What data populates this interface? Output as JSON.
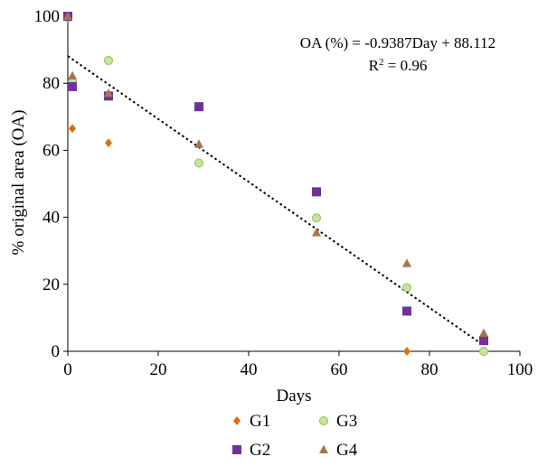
{
  "chart_data": {
    "type": "scatter",
    "xlabel": "Days",
    "ylabel": "% original area (OA)",
    "xlim": [
      0,
      100
    ],
    "ylim": [
      0,
      100
    ],
    "xticks": [
      "0",
      "20",
      "40",
      "60",
      "80",
      "100"
    ],
    "yticks": [
      "0",
      "20",
      "40",
      "60",
      "80",
      "100"
    ],
    "grid": false,
    "legend_position": "bottom",
    "annotation": {
      "equation": "OA (%) = -0.9387Day + 88.112",
      "r2_prefix": "R",
      "r2_sup": "2",
      "r2_suffix": " = 0.96"
    },
    "trendline": {
      "slope": -0.9387,
      "intercept": 88.112,
      "x_range": [
        0,
        92
      ],
      "style": "dotted",
      "color": "#000000"
    },
    "series": [
      {
        "name": "G1",
        "marker": "diamond",
        "color": "#E46C0A",
        "points": [
          [
            0,
            100
          ],
          [
            1,
            66.5
          ],
          [
            9,
            62.2
          ],
          [
            75,
            0
          ]
        ]
      },
      {
        "name": "G2",
        "marker": "square",
        "color": "#7030A0",
        "points": [
          [
            0,
            100
          ],
          [
            1,
            79
          ],
          [
            9,
            76.2
          ],
          [
            29,
            73
          ],
          [
            55,
            47.6
          ],
          [
            75,
            12
          ],
          [
            92,
            3.2
          ]
        ]
      },
      {
        "name": "G3",
        "marker": "circle",
        "color": "#C4E59A",
        "stroke": "#9BBB59",
        "points": [
          [
            0,
            99.6
          ],
          [
            1,
            80.6
          ],
          [
            9,
            86.8
          ],
          [
            29,
            56.2
          ],
          [
            55,
            39.8
          ],
          [
            75,
            19
          ],
          [
            92,
            0
          ]
        ]
      },
      {
        "name": "G4",
        "marker": "triangle",
        "color": "#A5774A",
        "points": [
          [
            0,
            100
          ],
          [
            1,
            82.2
          ],
          [
            9,
            77
          ],
          [
            29,
            61.8
          ],
          [
            55,
            35.4
          ],
          [
            75,
            26.2
          ],
          [
            92,
            5.4
          ]
        ]
      }
    ],
    "legend_order": [
      "G1",
      "G3",
      "G2",
      "G4"
    ]
  }
}
